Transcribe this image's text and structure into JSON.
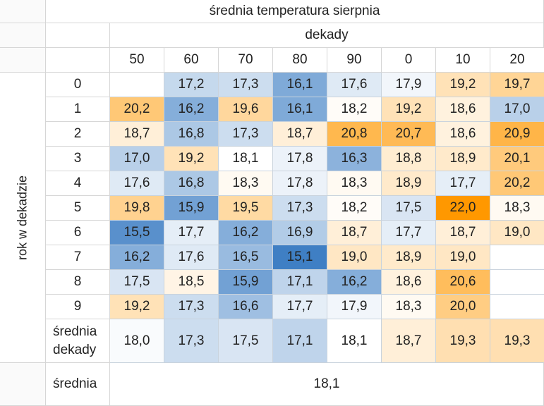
{
  "chart_data": {
    "type": "heatmap",
    "title": "średnia temperatura sierpnia",
    "column_group_label": "dekady",
    "row_group_label": "rok w dekadzie",
    "columns": [
      "50",
      "60",
      "70",
      "80",
      "90",
      "0",
      "10",
      "20"
    ],
    "rows": [
      "0",
      "1",
      "2",
      "3",
      "4",
      "5",
      "6",
      "7",
      "8",
      "9"
    ],
    "values": [
      [
        null,
        "17,2",
        "17,3",
        "16,1",
        "17,6",
        "17,9",
        "19,2",
        "19,7"
      ],
      [
        "20,2",
        "16,2",
        "19,6",
        "16,1",
        "18,2",
        "19,2",
        "18,6",
        "17,0"
      ],
      [
        "18,7",
        "16,8",
        "17,3",
        "18,7",
        "20,8",
        "20,7",
        "18,6",
        "20,9"
      ],
      [
        "17,0",
        "19,2",
        "18,1",
        "17,8",
        "16,3",
        "18,8",
        "18,9",
        "20,1"
      ],
      [
        "17,6",
        "16,8",
        "18,3",
        "17,8",
        "18,3",
        "18,9",
        "17,7",
        "20,2"
      ],
      [
        "19,8",
        "15,9",
        "19,5",
        "17,3",
        "18,2",
        "17,5",
        "22,0",
        "18,3"
      ],
      [
        "15,5",
        "17,7",
        "16,2",
        "16,9",
        "18,7",
        "17,7",
        "18,7",
        "19,0"
      ],
      [
        "16,2",
        "17,6",
        "16,5",
        "15,1",
        "19,0",
        "18,9",
        "19,0",
        null
      ],
      [
        "17,5",
        "18,5",
        "15,9",
        "17,1",
        "16,2",
        "18,6",
        "20,6",
        null
      ],
      [
        "19,2",
        "17,3",
        "16,6",
        "17,7",
        "17,9",
        "18,3",
        "20,0",
        null
      ]
    ],
    "decade_mean_label": "średnia dekady",
    "decade_means": [
      "18,0",
      "17,3",
      "17,5",
      "17,1",
      "18,1",
      "18,7",
      "19,3",
      "19,3"
    ],
    "overall_mean_label": "średnia",
    "overall_mean": "18,1",
    "color_scale": {
      "low": "#3f7fc4",
      "mid": "#ffffff",
      "high": "#ff9800",
      "min": 15.1,
      "center": 18.1,
      "max": 22.0
    }
  }
}
